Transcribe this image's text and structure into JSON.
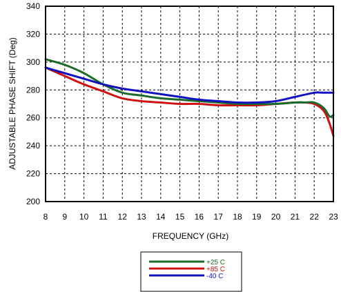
{
  "chart_data": {
    "type": "line",
    "title": "",
    "xlabel": "FREQUENCY (GHz)",
    "ylabel": "ADJUSTABLE PHASE SHIFT (Deg)",
    "xlim": [
      8,
      23
    ],
    "ylim": [
      200,
      340
    ],
    "x_ticks": [
      "8",
      "9",
      "10",
      "11",
      "12",
      "13",
      "14",
      "15",
      "16",
      "17",
      "18",
      "19",
      "20",
      "21",
      "22",
      "23"
    ],
    "y_ticks": [
      "200",
      "220",
      "240",
      "260",
      "280",
      "300",
      "320",
      "340"
    ],
    "grid": true,
    "legend_position": "bottom-center",
    "series": [
      {
        "name": "+25 C",
        "color": "#1a6b2a",
        "x": [
          8,
          9,
          10,
          11,
          12,
          13,
          14,
          15,
          16,
          17,
          18,
          19,
          20,
          21,
          21.5,
          22,
          22.5,
          22.8,
          23
        ],
        "y": [
          302,
          298,
          292,
          284,
          278,
          276,
          274,
          273,
          272,
          271,
          270,
          270,
          270,
          271,
          271,
          271,
          267,
          261,
          262
        ]
      },
      {
        "name": "+85 C",
        "color": "#d01010",
        "x": [
          8,
          9,
          10,
          11,
          12,
          13,
          14,
          15,
          16,
          17,
          18,
          19,
          20,
          21,
          21.5,
          22,
          22.5,
          22.8,
          23
        ],
        "y": [
          296,
          290,
          284,
          279,
          274,
          272,
          271,
          270,
          270,
          269,
          269,
          269,
          270,
          271,
          271,
          270,
          265,
          256,
          247
        ]
      },
      {
        "name": "-40 C",
        "color": "#1010c0",
        "x": [
          8,
          9,
          10,
          11,
          12,
          13,
          14,
          15,
          16,
          17,
          18,
          19,
          20,
          21,
          22,
          22.5,
          23
        ],
        "y": [
          296,
          292,
          288,
          284,
          281,
          279,
          277,
          275,
          273,
          272,
          271,
          271,
          272,
          275,
          278,
          278,
          278
        ]
      }
    ]
  }
}
